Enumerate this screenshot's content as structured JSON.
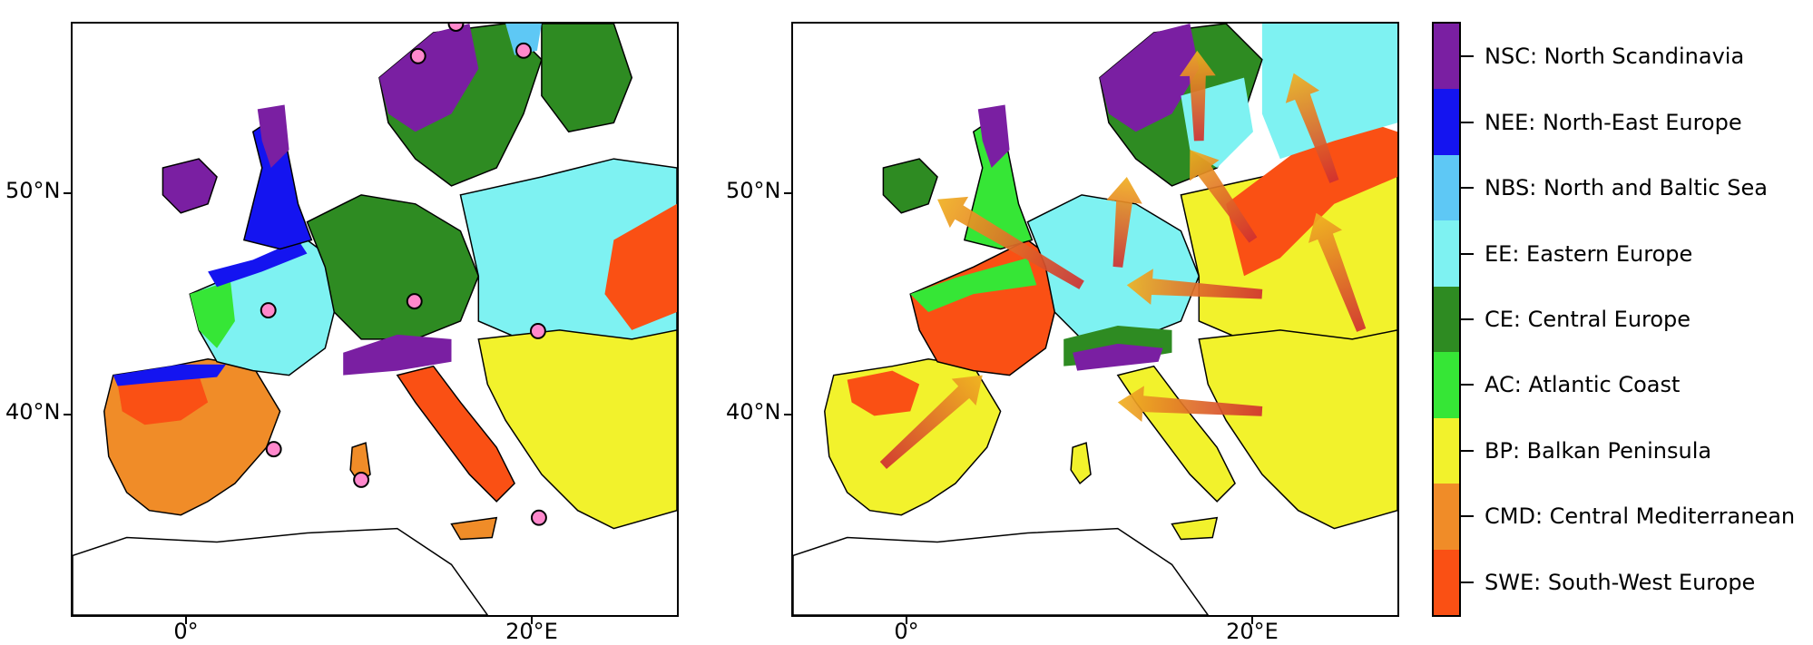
{
  "axes": {
    "y_ticks": [
      {
        "label": "50°N"
      },
      {
        "label": "40°N"
      }
    ],
    "x_ticks": [
      {
        "label": "0°"
      },
      {
        "label": "20°E"
      }
    ]
  },
  "legend": {
    "items": [
      {
        "label": "NSC: North Scandinavia",
        "color": "#7a1fa2"
      },
      {
        "label": "NEE: North-East Europe",
        "color": "#1414f0"
      },
      {
        "label": "NBS: North and Baltic Sea",
        "color": "#5ec8f5"
      },
      {
        "label": "EE: Eastern Europe",
        "color": "#7ef2f2"
      },
      {
        "label": "CE: Central Europe",
        "color": "#2e8b22"
      },
      {
        "label": "AC: Atlantic Coast",
        "color": "#36e636"
      },
      {
        "label": "BP: Balkan Peninsula",
        "color": "#f2f22c"
      },
      {
        "label": "CMD: Central Mediterranean",
        "color": "#f08c28"
      },
      {
        "label": "SWE: South-West Europe",
        "color": "#fa5014"
      }
    ]
  },
  "maps": {
    "left_title": "",
    "right_title": "",
    "station_marker_color": "#ff88cc",
    "arrow_color": "#d03030"
  }
}
